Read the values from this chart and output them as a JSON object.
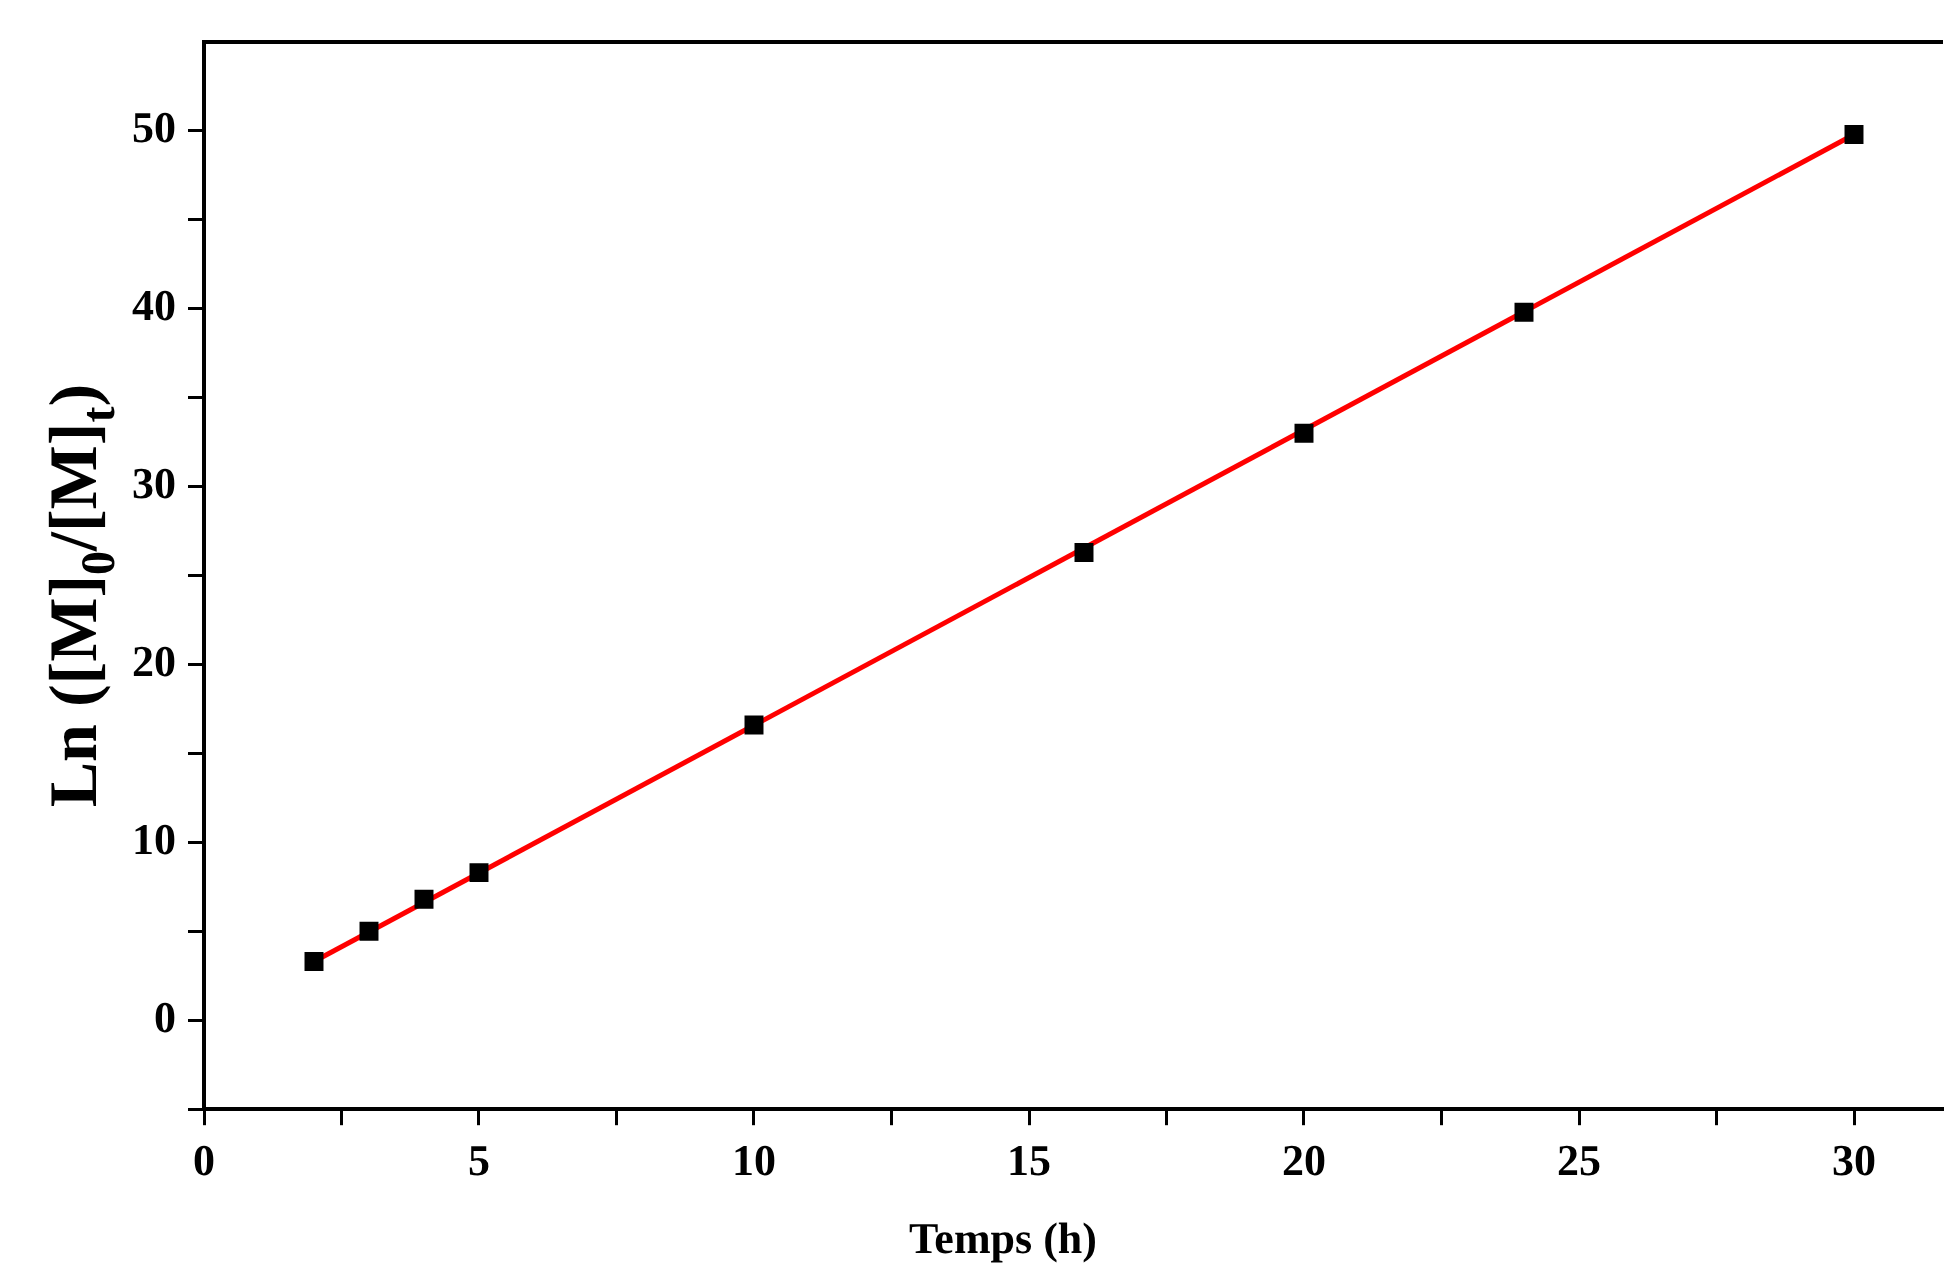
{
  "chart_data": {
    "type": "scatter",
    "xlabel": "Temps (h)",
    "ylabel": "Ln ([M]$_{0}$/[M]$_{t}$)",
    "xlim": [
      0,
      31.6
    ],
    "ylim": [
      -5,
      55
    ],
    "xticks": [
      0,
      {
        "value": 2.5,
        "label": null
      },
      5,
      {
        "value": 7.5,
        "label": null
      },
      10,
      {
        "value": 12.5,
        "label": null
      },
      15,
      {
        "value": 17.5,
        "label": null
      },
      20,
      {
        "value": 22.5,
        "label": null
      },
      25,
      {
        "value": 27.5,
        "label": null
      },
      30
    ],
    "yticks": [
      {
        "value": -5,
        "label": null
      },
      0,
      {
        "value": 5,
        "label": null
      },
      10,
      {
        "value": 15,
        "label": null
      },
      20,
      {
        "value": 25,
        "label": null
      },
      30,
      {
        "value": 35,
        "label": null
      },
      40,
      {
        "value": 45,
        "label": null
      },
      50
    ],
    "x": [
      2,
      3,
      4,
      5,
      10,
      16,
      20,
      24,
      30
    ],
    "series": [
      {
        "type": "scatter",
        "color": "#000000",
        "marker": "square",
        "values": [
          3.3,
          5.0,
          6.8,
          8.3,
          16.6,
          26.3,
          33.0,
          39.8,
          49.8
        ]
      },
      {
        "type": "line",
        "color": "#ff0000",
        "marker": "none",
        "line_style": "solid",
        "x": [
          2,
          30
        ],
        "values": [
          3.3,
          49.8
        ]
      }
    ],
    "grid": false,
    "legend": false
  }
}
